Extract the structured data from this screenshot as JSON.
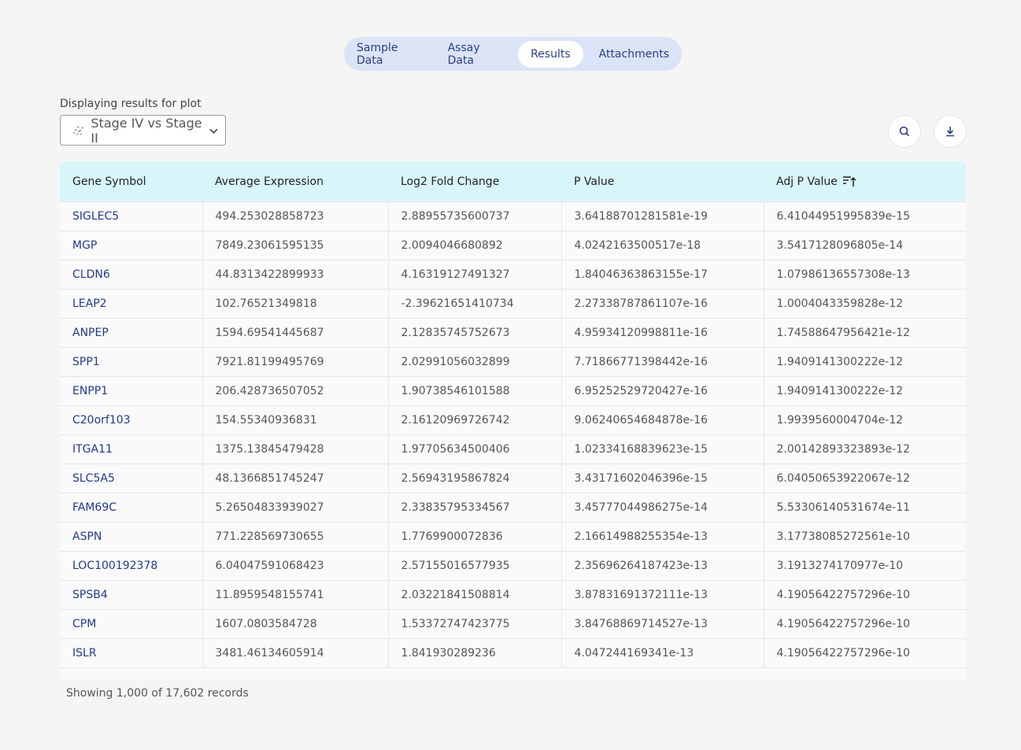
{
  "tabs": [
    "Sample Data",
    "Assay Data",
    "Results",
    "Attachments"
  ],
  "active_tab": 2,
  "plot_label": "Displaying results for plot",
  "plot_select": "Stage IV vs Stage II",
  "table": {
    "columns": [
      "Gene Symbol",
      "Average Expression",
      "Log2 Fold Change",
      "P Value",
      "Adj P Value"
    ],
    "sorted_column": 4,
    "rows": [
      [
        "SIGLEC5",
        "494.253028858723",
        "2.88955735600737",
        "3.64188701281581e-19",
        "6.41044951995839e-15"
      ],
      [
        "MGP",
        "7849.23061595135",
        "2.0094046680892",
        "4.0242163500517e-18",
        "3.5417128096805e-14"
      ],
      [
        "CLDN6",
        "44.8313422899933",
        "4.16319127491327",
        "1.84046363863155e-17",
        "1.07986136557308e-13"
      ],
      [
        "LEAP2",
        "102.76521349818",
        "-2.39621651410734",
        "2.27338787861107e-16",
        "1.0004043359828e-12"
      ],
      [
        "ANPEP",
        "1594.69541445687",
        "2.12835745752673",
        "4.95934120998811e-16",
        "1.74588647956421e-12"
      ],
      [
        "SPP1",
        "7921.81199495769",
        "2.02991056032899",
        "7.71866771398442e-16",
        "1.9409141300222e-12"
      ],
      [
        "ENPP1",
        "206.428736507052",
        "1.90738546101588",
        "6.95252529720427e-16",
        "1.9409141300222e-12"
      ],
      [
        "C20orf103",
        "154.55340936831",
        "2.16120969726742",
        "9.06240654684878e-16",
        "1.9939560004704e-12"
      ],
      [
        "ITGA11",
        "1375.13845479428",
        "1.97705634500406",
        "1.02334168839623e-15",
        "2.00142893323893e-12"
      ],
      [
        "SLC5A5",
        "48.1366851745247",
        "2.56943195867824",
        "3.43171602046396e-15",
        "6.04050653922067e-12"
      ],
      [
        "FAM69C",
        "5.26504833939027",
        "2.33835795334567",
        "3.45777044986275e-14",
        "5.53306140531674e-11"
      ],
      [
        "ASPN",
        "771.228569730655",
        "1.7769900072836",
        "2.16614988255354e-13",
        "3.17738085272561e-10"
      ],
      [
        "LOC100192378",
        "6.04047591068423",
        "2.57155016577935",
        "2.35696264187423e-13",
        "3.1913274170977e-10"
      ],
      [
        "SPSB4",
        "11.8959548155741",
        "2.03221841508814",
        "3.87831691372111e-13",
        "4.19056422757296e-10"
      ],
      [
        "CPM",
        "1607.0803584728",
        "1.53372747423775",
        "3.84768869714527e-13",
        "4.19056422757296e-10"
      ],
      [
        "ISLR",
        "3481.46134605914",
        "1.841930289236",
        "4.047244169341e-13",
        "4.19056422757296e-10"
      ]
    ]
  },
  "footer": "Showing 1,000 of 17,602 records"
}
